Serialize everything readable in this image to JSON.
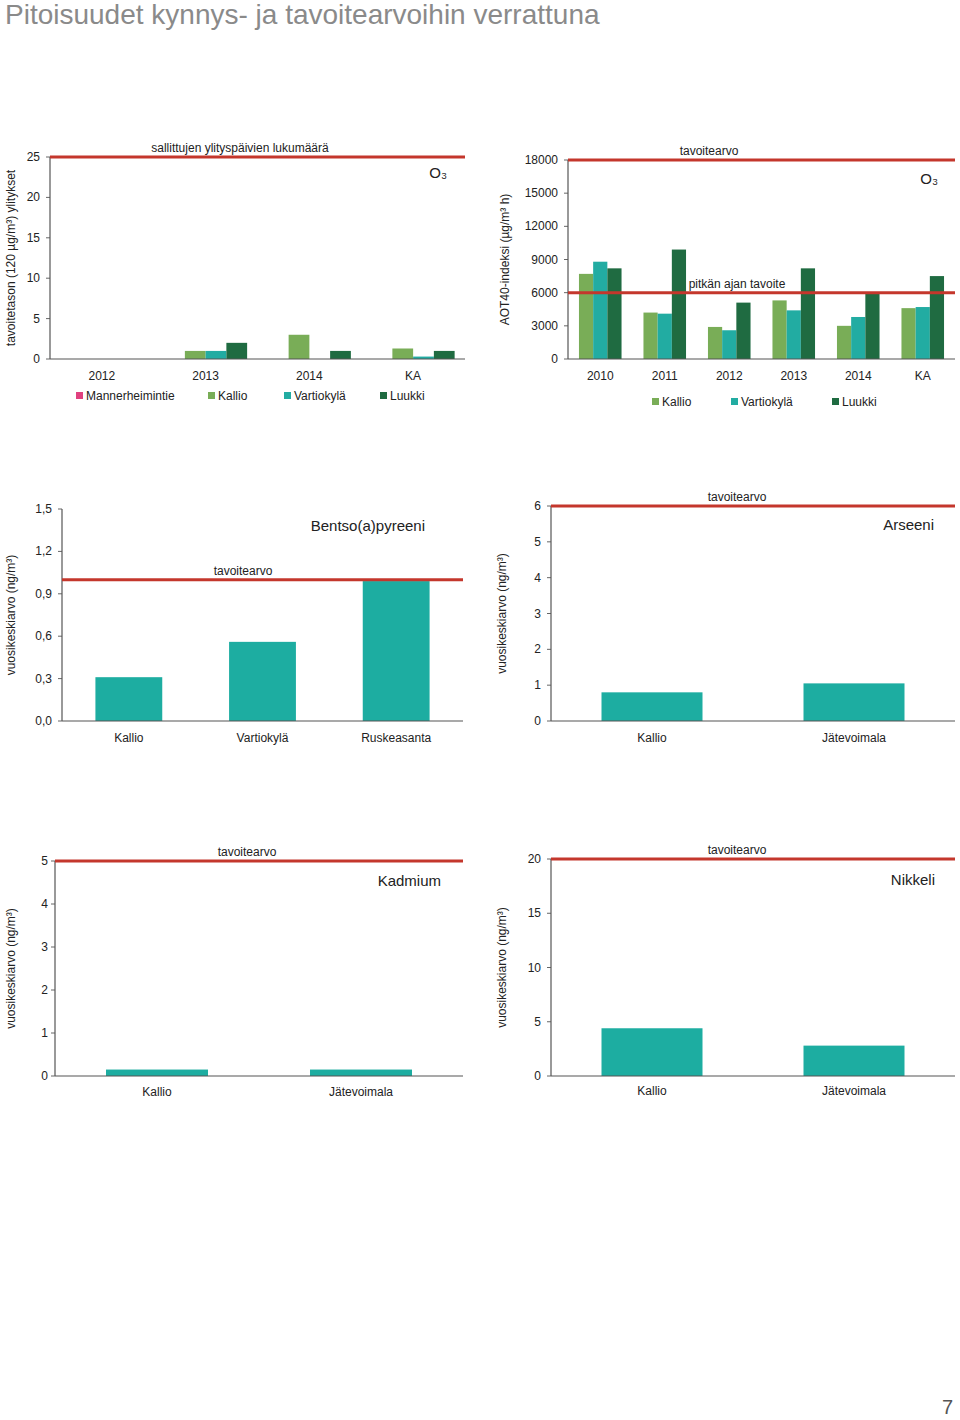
{
  "page": {
    "title": "Pitoisuudet kynnys- ja tavoitearvoihin verrattuna",
    "page_number": "7"
  },
  "chart_data": [
    {
      "type": "bar",
      "title": "O₃",
      "y_label": "tavoitetason (120 µg/m³) ylitykset",
      "categories": [
        "2012",
        "2013",
        "2014",
        "KA"
      ],
      "series": [
        {
          "name": "Mannerheimintie",
          "color": "#e0417f",
          "values": [
            0,
            0,
            0,
            0
          ]
        },
        {
          "name": "Kallio",
          "color": "#79ad57",
          "values": [
            0,
            1,
            3,
            1.3
          ]
        },
        {
          "name": "Vartiokylä",
          "color": "#22aca2",
          "values": [
            0,
            1,
            0,
            0.3
          ]
        },
        {
          "name": "Luukki",
          "color": "#1f6b41",
          "values": [
            0,
            2,
            1,
            1
          ]
        }
      ],
      "ylim": [
        0,
        25
      ],
      "yticks": [
        0,
        5,
        10,
        15,
        20,
        25
      ],
      "annotations": [
        {
          "y": 25,
          "text": "sallittujen ylityspäivien lukumäärä"
        }
      ],
      "legend": "bottom"
    },
    {
      "type": "bar",
      "title": "O₃",
      "y_label": "AOT40-indeksi (µg/m³ h)",
      "categories": [
        "2010",
        "2011",
        "2012",
        "2013",
        "2014",
        "KA"
      ],
      "series": [
        {
          "name": "Kallio",
          "color": "#79ad57",
          "values": [
            7700,
            4200,
            2900,
            5300,
            3000,
            4600
          ]
        },
        {
          "name": "Vartiokylä",
          "color": "#22aca2",
          "values": [
            8800,
            4100,
            2600,
            4400,
            3800,
            4700
          ]
        },
        {
          "name": "Luukki",
          "color": "#1f6b41",
          "values": [
            8200,
            9900,
            5100,
            8200,
            6000,
            7500
          ]
        }
      ],
      "ylim": [
        0,
        18000
      ],
      "yticks": [
        0,
        3000,
        6000,
        9000,
        12000,
        15000,
        18000
      ],
      "annotations": [
        {
          "y": 18000,
          "text": "tavoitearvo"
        },
        {
          "y": 6000,
          "text": "pitkän ajan tavoite"
        }
      ],
      "legend": "bottom"
    },
    {
      "type": "bar",
      "title": "Bentso(a)pyreeni",
      "y_label": "vuosikeskiarvo (ng/m³)",
      "categories": [
        "Kallio",
        "Vartiokylä",
        "Ruskeasanta"
      ],
      "values": [
        0.31,
        0.56,
        0.99
      ],
      "color": "#1dada1",
      "ylim": [
        0,
        1.5
      ],
      "yticks": [
        {
          "value": 0,
          "label": "0,0"
        },
        {
          "value": 0.3,
          "label": "0,3"
        },
        {
          "value": 0.6,
          "label": "0,6"
        },
        {
          "value": 0.9,
          "label": "0,9"
        },
        {
          "value": 1.2,
          "label": "1,2"
        },
        {
          "value": 1.5,
          "label": "1,5"
        }
      ],
      "annotations": [
        {
          "y": 1,
          "text": "tavoitearvo"
        }
      ]
    },
    {
      "type": "bar",
      "title": "Arseeni",
      "y_label": "vuosikeskiarvo (ng/m³)",
      "categories": [
        "Kallio",
        "Jätevoimala"
      ],
      "values": [
        0.8,
        1.05
      ],
      "color": "#1dada1",
      "ylim": [
        0,
        6
      ],
      "yticks": [
        0,
        1,
        2,
        3,
        4,
        5,
        6
      ],
      "annotations": [
        {
          "y": 6,
          "text": "tavoitearvo"
        }
      ]
    },
    {
      "type": "bar",
      "title": "Kadmium",
      "y_label": "vuosikeskiarvo (ng/m³)",
      "categories": [
        "Kallio",
        "Jätevoimala"
      ],
      "values": [
        0.15,
        0.15
      ],
      "color": "#1dada1",
      "ylim": [
        0,
        5
      ],
      "yticks": [
        0,
        1,
        2,
        3,
        4,
        5
      ],
      "annotations": [
        {
          "y": 5,
          "text": "tavoitearvo"
        }
      ]
    },
    {
      "type": "bar",
      "title": "Nikkeli",
      "y_label": "vuosikeskiarvo (ng/m³)",
      "categories": [
        "Kallio",
        "Jätevoimala"
      ],
      "values": [
        4.4,
        2.8
      ],
      "color": "#1dada1",
      "ylim": [
        0,
        20
      ],
      "yticks": [
        0,
        5,
        10,
        15,
        20
      ],
      "annotations": [
        {
          "y": 20,
          "text": "tavoitearvo"
        }
      ]
    }
  ]
}
